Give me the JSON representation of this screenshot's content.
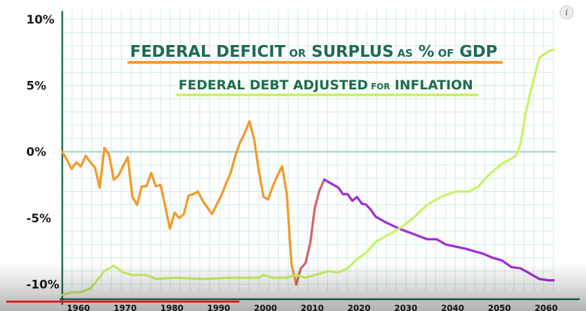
{
  "player": {
    "info_icon": "info-icon",
    "info_glyph": "i",
    "progress": 0.406,
    "progress_color": "#e01e1e"
  },
  "chart_data": {
    "type": "line",
    "title_lines": [
      {
        "name": "Federal Deficit or Surplus as % of GDP",
        "parts": [
          {
            "text": "FEDERAL DEFICIT",
            "size": "large"
          },
          {
            "text": "OR",
            "size": "small"
          },
          {
            "text": "SURPLUS",
            "size": "large"
          },
          {
            "text": "AS",
            "size": "small"
          },
          {
            "text": "%",
            "size": "large"
          },
          {
            "text": "OF",
            "size": "small"
          },
          {
            "text": "GDP",
            "size": "large"
          }
        ],
        "underline_color": "#f39a2b"
      },
      {
        "name": "Federal Debt Adjusted for Inflation",
        "parts": [
          {
            "text": "FEDERAL DEBT ADJUSTED",
            "size": "large"
          },
          {
            "text": "FOR",
            "size": "small"
          },
          {
            "text": "INFLATION",
            "size": "large"
          }
        ],
        "underline_color": "#c9f26a"
      }
    ],
    "xlim": [
      1958,
      2063
    ],
    "ylim": [
      -10.5,
      10.2
    ],
    "x_ticks": [
      1960,
      1970,
      1980,
      1990,
      2000,
      2010,
      2020,
      2030,
      2040,
      2050,
      2060
    ],
    "x_tick_labels": [
      "1960",
      "1970",
      "1980",
      "1990",
      "2000",
      "2010",
      "2020",
      "2030",
      "2040",
      "2050",
      "2060"
    ],
    "y_ticks": [
      10,
      5,
      0,
      -5,
      -10
    ],
    "y_tick_labels": [
      "10%",
      "5%",
      "0%",
      "-5%",
      "-10%"
    ],
    "grid": true,
    "grid_color": "#cfece4",
    "axis_color": "#1f6b53",
    "zero_line_color": "#a9dcce",
    "series": [
      {
        "color": "#f39a2b",
        "points": [
          [
            1958,
            0
          ],
          [
            1959,
            -0.6
          ],
          [
            1960,
            -1.3
          ],
          [
            1961,
            -0.8
          ],
          [
            1962,
            -1.1
          ],
          [
            1963,
            -0.3
          ],
          [
            1964,
            -0.8
          ],
          [
            1965,
            -1.2
          ],
          [
            1966,
            -2.7
          ],
          [
            1967,
            0.3
          ],
          [
            1968,
            -0.2
          ],
          [
            1969,
            -2.1
          ],
          [
            1970,
            -1.8
          ],
          [
            1971,
            -1.1
          ],
          [
            1972,
            -0.4
          ],
          [
            1973,
            -3.4
          ],
          [
            1974,
            -4.0
          ],
          [
            1975,
            -2.6
          ],
          [
            1976,
            -2.6
          ],
          [
            1977,
            -1.6
          ],
          [
            1978,
            -2.6
          ],
          [
            1979,
            -2.5
          ],
          [
            1980,
            -4.1
          ],
          [
            1981,
            -5.8
          ],
          [
            1982,
            -4.6
          ],
          [
            1983,
            -5.0
          ],
          [
            1984,
            -4.7
          ],
          [
            1985,
            -3.3
          ],
          [
            1986,
            -3.2
          ],
          [
            1987,
            -3.0
          ],
          [
            1988,
            -3.7
          ],
          [
            1989,
            -4.2
          ],
          [
            1990,
            -4.7
          ],
          [
            1991,
            -4.0
          ],
          [
            1992,
            -3.3
          ],
          [
            1993,
            -2.4
          ],
          [
            1994,
            -1.6
          ],
          [
            1995,
            -0.3
          ],
          [
            1996,
            0.7
          ],
          [
            1997,
            1.4
          ],
          [
            1998,
            2.3
          ],
          [
            1999,
            1.0
          ],
          [
            2000,
            -1.4
          ],
          [
            2001,
            -3.4
          ],
          [
            2002,
            -3.6
          ],
          [
            2003,
            -2.6
          ],
          [
            2004,
            -1.8
          ],
          [
            2005,
            -1.1
          ],
          [
            2006,
            -3.2
          ],
          [
            2007,
            -8.5
          ],
          [
            2008,
            -10.0
          ]
        ]
      },
      {
        "color": "#d16766",
        "points": [
          [
            2008,
            -10.0
          ],
          [
            2009,
            -8.8
          ],
          [
            2010,
            -8.4
          ],
          [
            2011,
            -6.9
          ],
          [
            2012,
            -4.2
          ],
          [
            2013,
            -2.9
          ],
          [
            2014,
            -2.1
          ]
        ]
      },
      {
        "color": "#a22ed6",
        "points": [
          [
            2014,
            -2.1
          ],
          [
            2015,
            -2.3
          ],
          [
            2016,
            -2.5
          ],
          [
            2017,
            -2.7
          ],
          [
            2018,
            -3.2
          ],
          [
            2019,
            -3.2
          ],
          [
            2020,
            -3.7
          ],
          [
            2021,
            -3.4
          ],
          [
            2022,
            -3.9
          ],
          [
            2023,
            -4.0
          ],
          [
            2024,
            -4.4
          ],
          [
            2025,
            -4.9
          ],
          [
            2027,
            -5.3
          ],
          [
            2030,
            -5.8
          ],
          [
            2033,
            -6.2
          ],
          [
            2036,
            -6.6
          ],
          [
            2038,
            -6.6
          ],
          [
            2040,
            -7.0
          ],
          [
            2044,
            -7.3
          ],
          [
            2048,
            -7.7
          ],
          [
            2050,
            -8.0
          ],
          [
            2052,
            -8.2
          ],
          [
            2054,
            -8.7
          ],
          [
            2056,
            -8.8
          ],
          [
            2058,
            -9.2
          ],
          [
            2060,
            -9.6
          ],
          [
            2062,
            -9.7
          ],
          [
            2063,
            -9.7
          ]
        ]
      },
      {
        "color": "#c9f26a",
        "points": [
          [
            1958,
            -10.8
          ],
          [
            1960,
            -10.6
          ],
          [
            1962,
            -10.6
          ],
          [
            1964,
            -10.3
          ],
          [
            1965,
            -9.9
          ],
          [
            1967,
            -9.0
          ],
          [
            1969,
            -8.6
          ],
          [
            1971,
            -9.1
          ],
          [
            1973,
            -9.3
          ],
          [
            1976,
            -9.3
          ],
          [
            1978,
            -9.6
          ],
          [
            1982,
            -9.5
          ],
          [
            1988,
            -9.6
          ],
          [
            1994,
            -9.5
          ],
          [
            2000,
            -9.5
          ],
          [
            2001,
            -9.3
          ],
          [
            2003,
            -9.5
          ],
          [
            2006,
            -9.5
          ],
          [
            2008,
            -9.3
          ],
          [
            2010,
            -9.5
          ],
          [
            2013,
            -9.2
          ],
          [
            2015,
            -9.0
          ],
          [
            2017,
            -9.1
          ],
          [
            2019,
            -8.8
          ],
          [
            2021,
            -8.1
          ],
          [
            2023,
            -7.6
          ],
          [
            2025,
            -6.8
          ],
          [
            2027,
            -6.4
          ],
          [
            2030,
            -5.8
          ],
          [
            2033,
            -5.0
          ],
          [
            2036,
            -4.0
          ],
          [
            2039,
            -3.4
          ],
          [
            2042,
            -3.0
          ],
          [
            2045,
            -3.0
          ],
          [
            2047,
            -2.6
          ],
          [
            2049,
            -1.8
          ],
          [
            2052,
            -0.9
          ],
          [
            2055,
            -0.3
          ],
          [
            2056,
            0.7
          ],
          [
            2057,
            2.8
          ],
          [
            2058,
            4.4
          ],
          [
            2059,
            5.8
          ],
          [
            2060,
            7.1
          ],
          [
            2062,
            7.6
          ],
          [
            2063,
            7.7
          ]
        ]
      }
    ]
  }
}
